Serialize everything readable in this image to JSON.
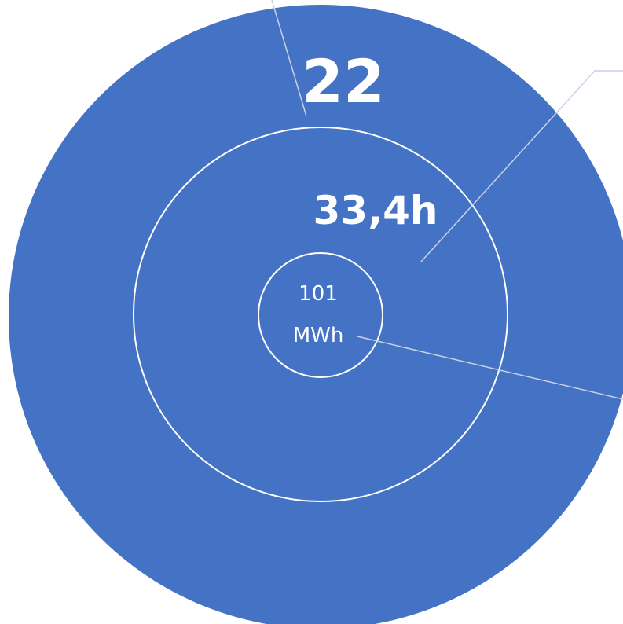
{
  "rings": {
    "outer": {
      "value": "22",
      "fill_color": "#4472c4"
    },
    "middle": {
      "value": "33,4h"
    },
    "inner": {
      "value_line1": "101",
      "value_line2": "MWh"
    }
  },
  "colors": {
    "ring_fill": "#4472c4",
    "ring_outline": "#ffffff",
    "leader_line": "#c9d3e6",
    "text": "#ffffff"
  }
}
